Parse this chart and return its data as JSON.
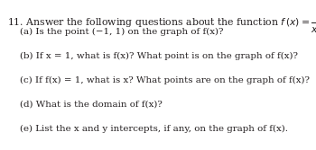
{
  "background_color": "#ffffff",
  "text_color": "#231f20",
  "number": "11.",
  "intro": "Answer the following questions about the function",
  "parts": [
    "(a) Is the point (−1, 1) on the graph of f(x)?",
    "(b) If x = 1, what is f(x)? What point is on the graph of f(x)?",
    "(c) If f(x) = 1, what is x? What points are on the graph of f(x)?",
    "(d) What is the domain of f(x)?",
    "(e) List the x and y intercepts, if any, on the graph of f(x)."
  ],
  "font_size_main": 7.8,
  "font_size_parts": 7.4,
  "fig_width": 3.5,
  "fig_height": 1.67,
  "dpi": 100
}
